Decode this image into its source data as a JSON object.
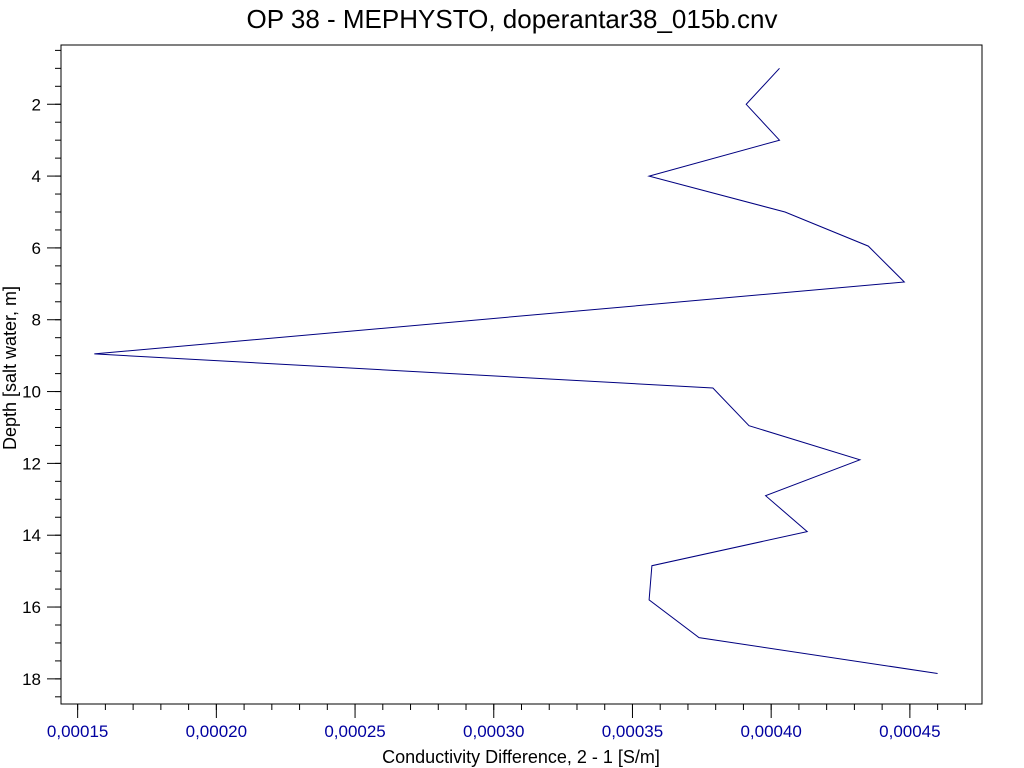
{
  "chart_data": {
    "type": "line",
    "title": "OP 38 - MEPHYSTO, doperantar38_015b.cnv",
    "xlabel": "Conductivity Difference, 2 - 1 [S/m]",
    "ylabel": "Depth [salt water, m]",
    "xlim": [
      0.000144,
      0.000476
    ],
    "ylim": [
      18.7,
      0.35
    ],
    "y_inverted": true,
    "grid": false,
    "x_ticks": [
      0.00015,
      0.0002,
      0.00025,
      0.0003,
      0.00035,
      0.0004,
      0.00045
    ],
    "x_tick_labels": [
      "0,00015",
      "0,00020",
      "0,00025",
      "0,00030",
      "0,00035",
      "0,00040",
      "0,00045"
    ],
    "x_minor_step": 1e-05,
    "y_ticks": [
      2,
      4,
      6,
      8,
      10,
      12,
      14,
      16,
      18
    ],
    "y_tick_labels": [
      "2",
      "4",
      "6",
      "8",
      "10",
      "12",
      "14",
      "16",
      "18"
    ],
    "y_minor_step": 0.5,
    "series": [
      {
        "color": "#000080",
        "x": [
          0.000403,
          0.000391,
          0.000403,
          0.000356,
          0.000405,
          0.000435,
          0.000448,
          0.000156,
          0.000379,
          0.000392,
          0.000432,
          0.000398,
          0.000413,
          0.000357,
          0.000356,
          0.000374,
          0.00046
        ],
        "y": [
          1.0,
          2.0,
          3.0,
          4.0,
          5.0,
          5.95,
          6.95,
          8.95,
          9.9,
          10.95,
          11.9,
          12.9,
          13.9,
          14.85,
          15.8,
          16.85,
          17.85
        ]
      }
    ]
  },
  "colors": {
    "x_axis_text": "#0000a0",
    "axis_line": "#000000",
    "series": "#000080"
  }
}
